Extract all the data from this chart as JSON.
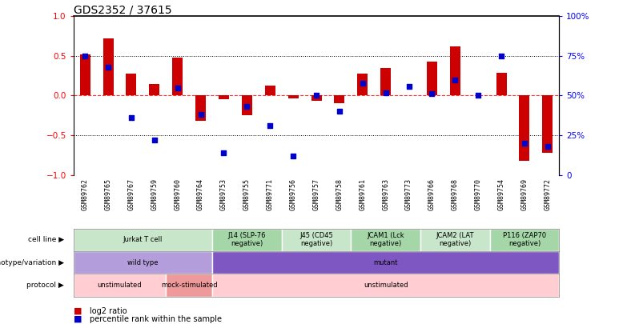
{
  "title": "GDS2352 / 37615",
  "sample_labels": [
    "GSM89762",
    "GSM89765",
    "GSM89767",
    "GSM89759",
    "GSM89760",
    "GSM89764",
    "GSM89753",
    "GSM89755",
    "GSM89771",
    "GSM89756",
    "GSM89757",
    "GSM89758",
    "GSM89761",
    "GSM89763",
    "GSM89773",
    "GSM89766",
    "GSM89768",
    "GSM89770",
    "GSM89754",
    "GSM89769",
    "GSM89772"
  ],
  "log2_ratio": [
    0.52,
    0.72,
    0.28,
    0.15,
    0.48,
    -0.32,
    -0.05,
    -0.25,
    0.13,
    -0.04,
    -0.07,
    -0.1,
    0.28,
    0.35,
    0.0,
    0.43,
    0.62,
    0.0,
    0.29,
    -0.82,
    -0.72
  ],
  "percentile_rank": [
    75,
    68,
    36,
    22,
    55,
    38,
    14,
    43,
    31,
    12,
    50,
    40,
    58,
    52,
    56,
    51,
    60,
    50,
    75,
    20,
    18
  ],
  "cell_line_groups": [
    {
      "label": "Jurkat T cell",
      "start": 0,
      "end": 5,
      "color": "#c8e6c9"
    },
    {
      "label": "J14 (SLP-76\nnegative)",
      "start": 6,
      "end": 8,
      "color": "#a5d6a7"
    },
    {
      "label": "J45 (CD45\nnegative)",
      "start": 9,
      "end": 11,
      "color": "#c8e6c9"
    },
    {
      "label": "JCAM1 (Lck\nnegative)",
      "start": 12,
      "end": 14,
      "color": "#a5d6a7"
    },
    {
      "label": "JCAM2 (LAT\nnegative)",
      "start": 15,
      "end": 17,
      "color": "#c8e6c9"
    },
    {
      "label": "P116 (ZAP70\nnegative)",
      "start": 18,
      "end": 20,
      "color": "#a5d6a7"
    }
  ],
  "genotype_groups": [
    {
      "label": "wild type",
      "start": 0,
      "end": 5,
      "color": "#b39ddb"
    },
    {
      "label": "mutant",
      "start": 6,
      "end": 20,
      "color": "#7e57c2"
    }
  ],
  "protocol_groups": [
    {
      "label": "unstimulated",
      "start": 0,
      "end": 3,
      "color": "#ffcdd2"
    },
    {
      "label": "mock-stimulated",
      "start": 4,
      "end": 5,
      "color": "#ef9a9a"
    },
    {
      "label": "unstimulated",
      "start": 6,
      "end": 20,
      "color": "#ffcdd2"
    }
  ],
  "bar_color_red": "#cc0000",
  "bar_color_blue": "#0000cc",
  "ylim_left": [
    -1,
    1
  ],
  "ylim_right": [
    0,
    100
  ],
  "yticks_left": [
    -1,
    -0.5,
    0,
    0.5,
    1
  ],
  "yticks_right": [
    0,
    25,
    50,
    75,
    100
  ],
  "title_fontsize": 10
}
